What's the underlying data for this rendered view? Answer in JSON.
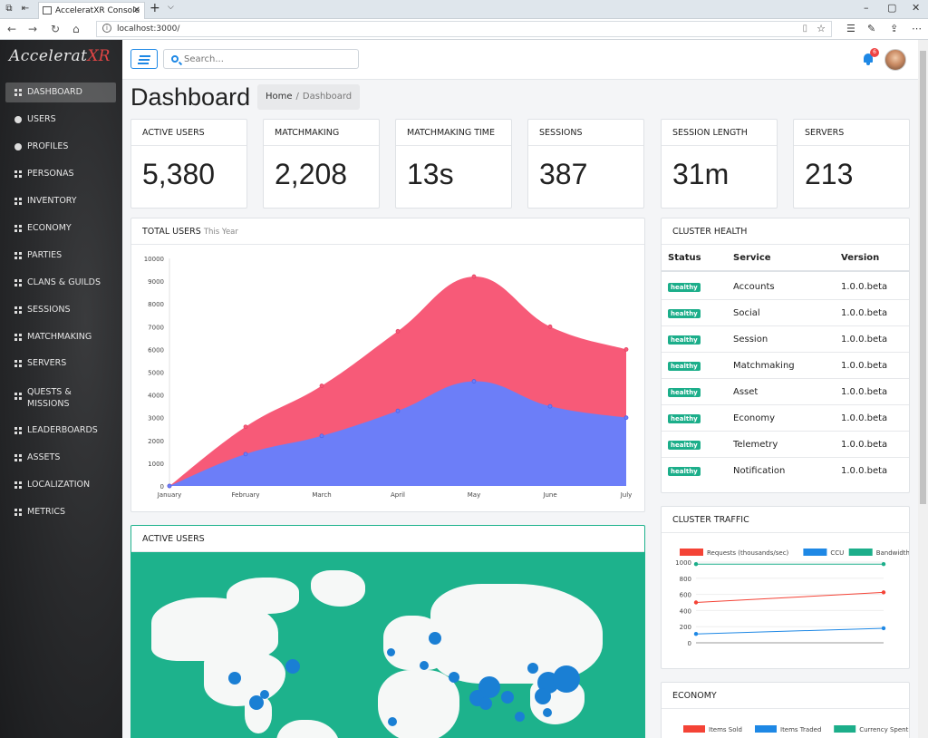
{
  "browser": {
    "tab_title": "AcceleratXR Console",
    "tab_close": "✕",
    "new_tab": "+",
    "url": "localhost:3000/"
  },
  "app": {
    "logo_main": "Accelerat",
    "logo_accent": "XR"
  },
  "sidebar": {
    "items": [
      {
        "label": "DASHBOARD"
      },
      {
        "label": "USERS"
      },
      {
        "label": "PROFILES"
      },
      {
        "label": "PERSONAS"
      },
      {
        "label": "INVENTORY"
      },
      {
        "label": "ECONOMY"
      },
      {
        "label": "PARTIES"
      },
      {
        "label": "CLANS & GUILDS"
      },
      {
        "label": "SESSIONS"
      },
      {
        "label": "MATCHMAKING"
      },
      {
        "label": "SERVERS"
      },
      {
        "label": "QUESTS &"
      },
      {
        "label": "MISSIONS"
      },
      {
        "label": "LEADERBOARDS"
      },
      {
        "label": "ASSETS"
      },
      {
        "label": "LOCALIZATION"
      },
      {
        "label": "METRICS"
      }
    ]
  },
  "header": {
    "search_placeholder": "Search...",
    "notification_count": "6"
  },
  "page": {
    "title": "Dashboard",
    "breadcrumb_home": "Home",
    "breadcrumb_sep": "/",
    "breadcrumb_current": "Dashboard"
  },
  "stats": [
    {
      "label": "ACTIVE USERS",
      "value": "5,380"
    },
    {
      "label": "MATCHMAKING",
      "value": "2,208"
    },
    {
      "label": "MATCHMAKING TIME",
      "value": "13s"
    },
    {
      "label": "SESSIONS",
      "value": "387"
    },
    {
      "label": "SESSION LENGTH",
      "value": "31m"
    },
    {
      "label": "SERVERS",
      "value": "213"
    }
  ],
  "total_users": {
    "title": "TOTAL USERS",
    "subtitle": "This Year"
  },
  "cluster_health": {
    "title": "CLUSTER HEALTH",
    "columns": [
      "Status",
      "Service",
      "Version"
    ],
    "rows": [
      {
        "status": "healthy",
        "service": "Accounts",
        "version": "1.0.0.beta"
      },
      {
        "status": "healthy",
        "service": "Social",
        "version": "1.0.0.beta"
      },
      {
        "status": "healthy",
        "service": "Session",
        "version": "1.0.0.beta"
      },
      {
        "status": "healthy",
        "service": "Matchmaking",
        "version": "1.0.0.beta"
      },
      {
        "status": "healthy",
        "service": "Asset",
        "version": "1.0.0.beta"
      },
      {
        "status": "healthy",
        "service": "Economy",
        "version": "1.0.0.beta"
      },
      {
        "status": "healthy",
        "service": "Telemetry",
        "version": "1.0.0.beta"
      },
      {
        "status": "healthy",
        "service": "Notification",
        "version": "1.0.0.beta"
      }
    ]
  },
  "active_users_map": {
    "title": "ACTIVE USERS"
  },
  "cluster_traffic": {
    "title": "CLUSTER TRAFFIC"
  },
  "economy": {
    "title": "ECONOMY"
  },
  "colors": {
    "accent": "#1e88e5",
    "healthy": "#1cae8a",
    "map_sea": "#1db28c",
    "series_red": "#f75a78",
    "series_blue": "#6c7ef8"
  },
  "chart_data": [
    {
      "type": "area",
      "categories": [
        "January",
        "February",
        "March",
        "April",
        "May",
        "June",
        "July"
      ],
      "series": [
        {
          "values": [
            0,
            2600,
            4400,
            6800,
            9200,
            7000,
            6000
          ],
          "color": "#f75a78"
        },
        {
          "values": [
            0,
            1400,
            2200,
            3300,
            4600,
            3500,
            3000
          ],
          "color": "#6c7ef8"
        }
      ],
      "ylim": [
        0,
        10000
      ],
      "yticks": [
        0,
        1000,
        2000,
        3000,
        4000,
        5000,
        6000,
        7000,
        8000,
        9000,
        10000
      ],
      "grid": false
    },
    {
      "type": "line",
      "legend": [
        "Requests (thousands/sec)",
        "CCU",
        "Bandwidth"
      ],
      "legend_colors": [
        "#f44336",
        "#1e88e5",
        "#1cae8a"
      ],
      "series": [
        {
          "name": "Requests (thousands/sec)",
          "values": [
            500,
            625
          ],
          "color": "#f44336"
        },
        {
          "name": "CCU",
          "values": [
            110,
            180
          ],
          "color": "#1e88e5"
        },
        {
          "name": "Bandwidth",
          "values": [
            975,
            975
          ],
          "color": "#1cae8a"
        }
      ],
      "ylim": [
        0,
        1000
      ],
      "yticks": [
        0,
        200,
        400,
        600,
        800,
        1000
      ]
    },
    {
      "type": "line",
      "legend": [
        "Items Sold",
        "Items Traded",
        "Currency Spent"
      ],
      "legend_colors": [
        "#f44336",
        "#1e88e5",
        "#1cae8a"
      ],
      "series": []
    }
  ]
}
